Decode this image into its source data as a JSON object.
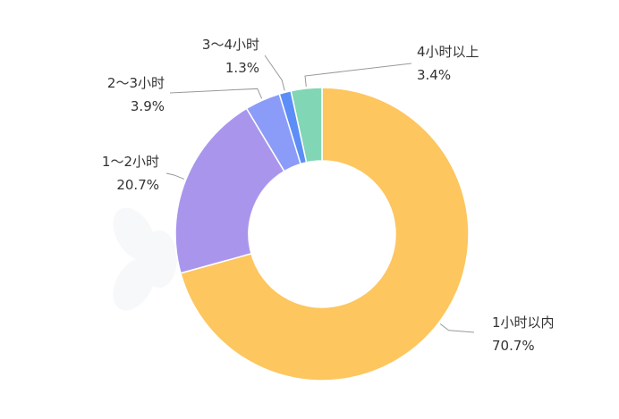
{
  "chart_data": {
    "type": "pie",
    "donut": true,
    "title": "",
    "slices": [
      {
        "label": "1小时以内",
        "value": 70.7,
        "value_text": "70.7%",
        "color": "#FDC65E"
      },
      {
        "label": "1～2小时",
        "value": 20.7,
        "value_text": "20.7%",
        "color": "#A996EC"
      },
      {
        "label": "2～3小时",
        "value": 3.9,
        "value_text": "3.9%",
        "color": "#8B9CF8"
      },
      {
        "label": "3～4小时",
        "value": 1.3,
        "value_text": "1.3%",
        "color": "#5D8EF7"
      },
      {
        "label": "4小时以上",
        "value": 3.4,
        "value_text": "3.4%",
        "color": "#80D6B5"
      }
    ],
    "start": "12 o'clock",
    "direction": "clockwise",
    "legend": "none"
  }
}
